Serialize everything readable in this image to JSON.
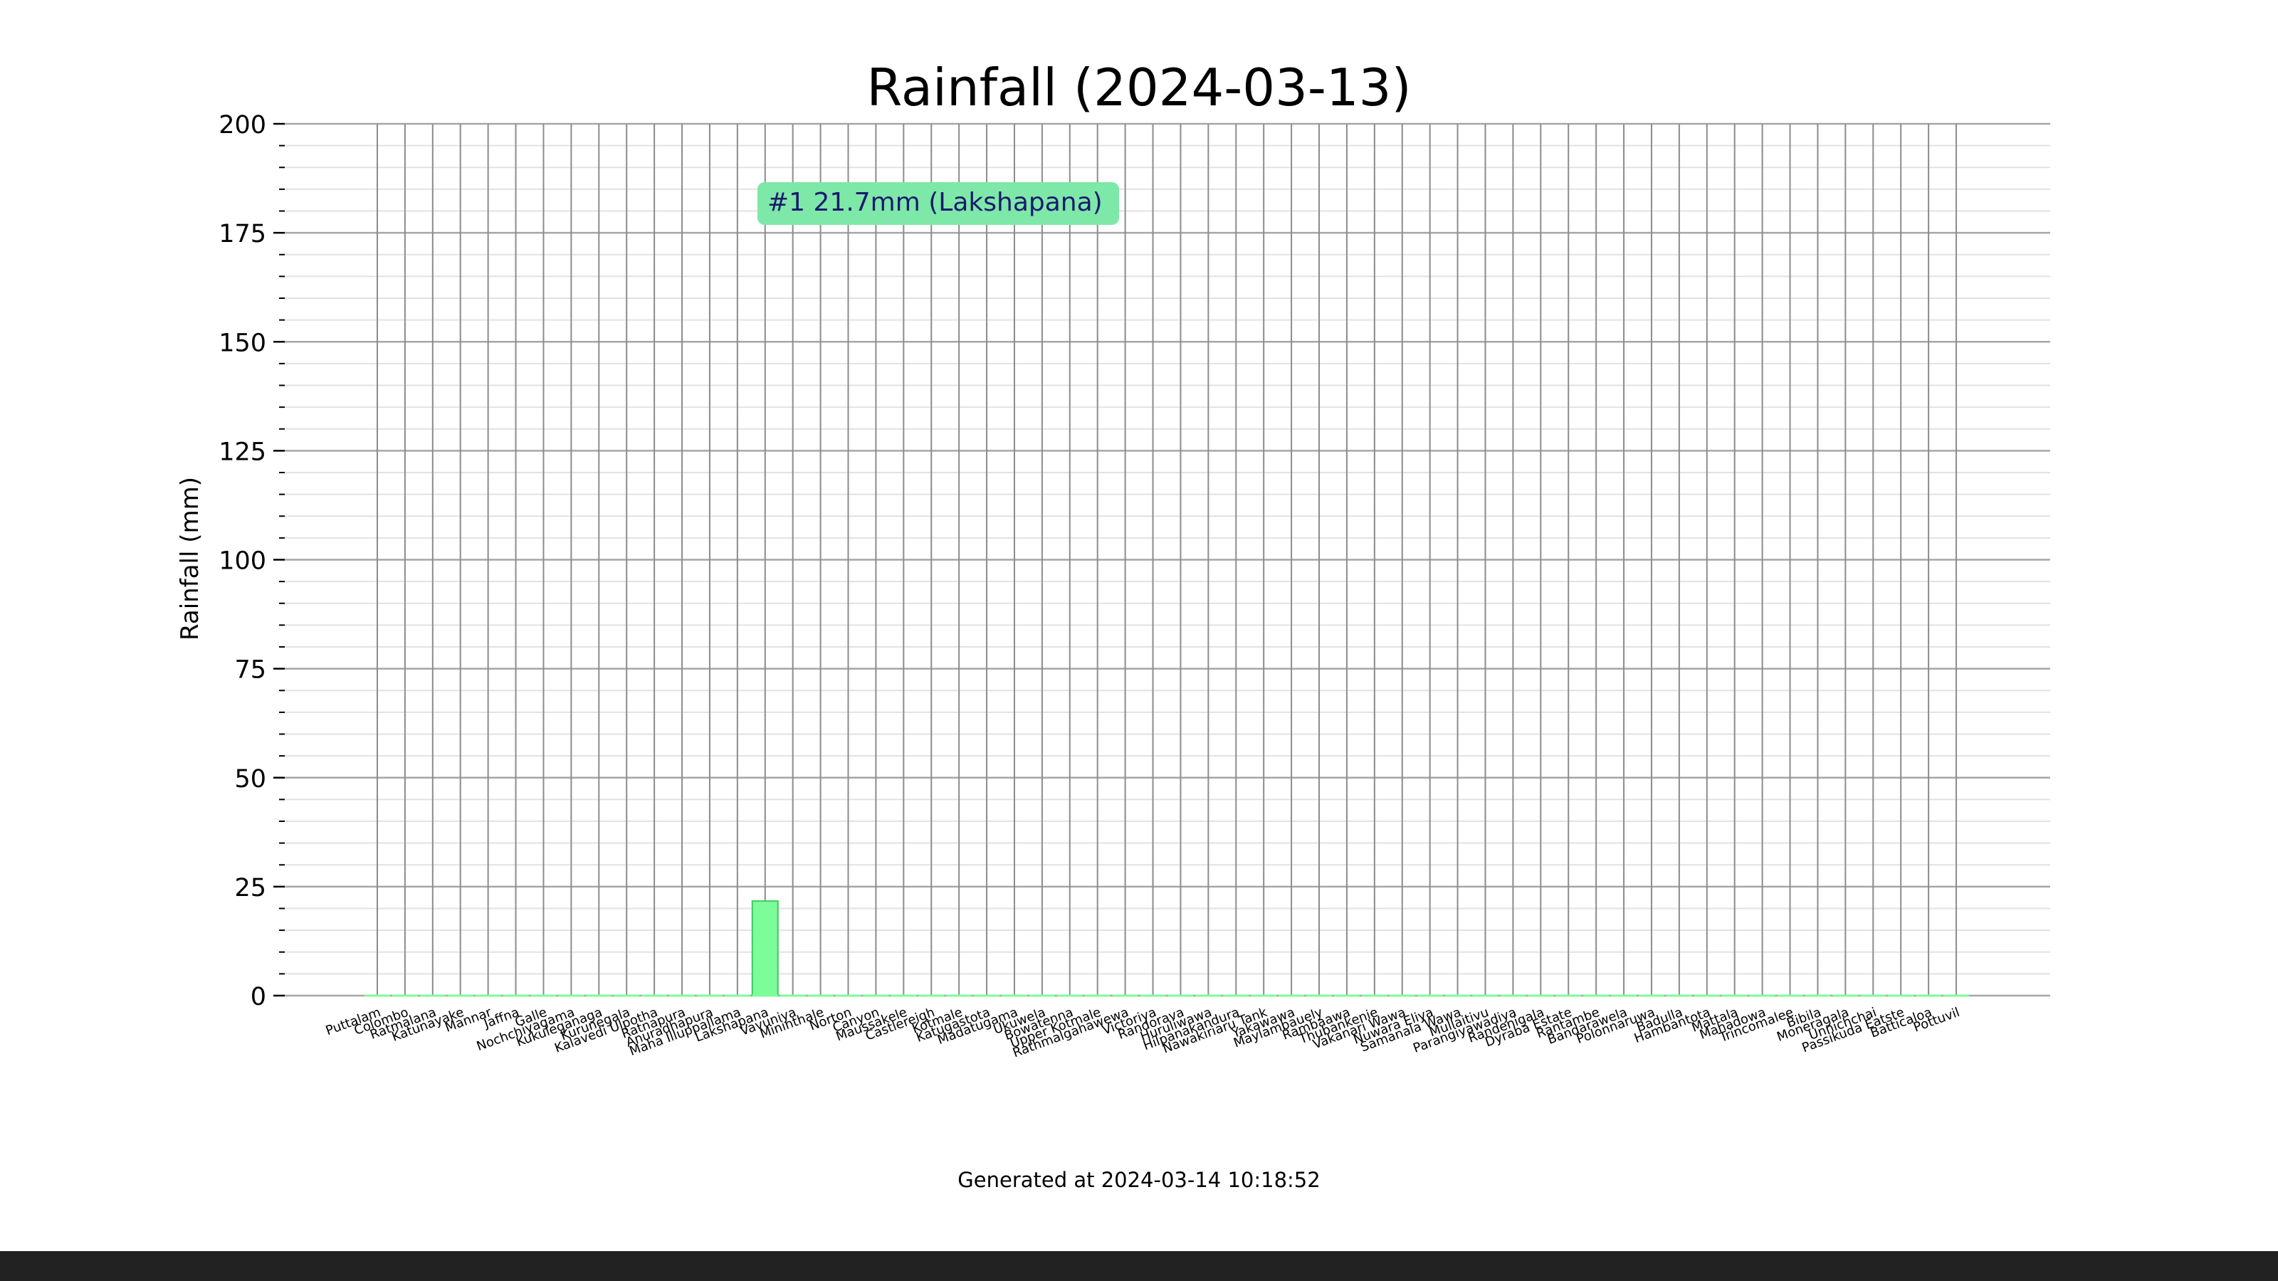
{
  "chart_data": {
    "type": "bar",
    "title": "Rainfall (2024-03-13)",
    "xlabel": "",
    "ylabel": "Rainfall (mm)",
    "ylim": [
      0,
      200
    ],
    "yticks": [
      0,
      25,
      50,
      75,
      100,
      125,
      150,
      175,
      200
    ],
    "grid": true,
    "categories": [
      "Puttalam",
      "Colombo",
      "Ratmalana",
      "Katunayake",
      "Mannar",
      "Jaffna",
      "Galle",
      "Nochchiyagama",
      "Kukuleganaga",
      "Kurunegala",
      "Kalavedi Ulpotha",
      "Ratnapura",
      "Anuradhapura",
      "Maha Illuppallama",
      "Lakshapana",
      "Vavuniya",
      "Mininthale",
      "Norton",
      "Canyon",
      "Maussakele",
      "Castlereigh",
      "Kotmale",
      "Katugastota",
      "Madatugama",
      "Ukuwela",
      "Bowatenna",
      "Upper Kotmale",
      "Rathmalgahawewa",
      "Victoriya",
      "Randorava",
      "Huruliwawa",
      "Hilpanakandura",
      "Nawakiriaru Tank",
      "Yakawawa",
      "Maylambauely",
      "Rambaawa",
      "Thubankenie",
      "Vakanari Wawa",
      "Nuwara Eliya",
      "Samanala Wawa",
      "Mullaitivu",
      "Parangiyawadiya",
      "Randenigala",
      "Dyraba Estate",
      "Rantambe",
      "Bandarawela",
      "Polonnaruwa",
      "Badulla",
      "Hambantota",
      "Mattala",
      "Mahadowa",
      "Trincomalee",
      "Bibila",
      "Moneragala",
      "Unnichchai",
      "Passikuda Eatste",
      "Batticaloa",
      "Pottuvil"
    ],
    "values": [
      0,
      0,
      0,
      0,
      0,
      0,
      0,
      0,
      0,
      0,
      0,
      0,
      0,
      0,
      21.7,
      0,
      0,
      0,
      0,
      0,
      0,
      0,
      0,
      0,
      0,
      0,
      0,
      0,
      0,
      0,
      0,
      0,
      0,
      0,
      0,
      0,
      0,
      0,
      0,
      0,
      0,
      0,
      0,
      0,
      0,
      0,
      0,
      0,
      0,
      0,
      0,
      0,
      0,
      0,
      0,
      0,
      0,
      0
    ],
    "annotation": {
      "text": "#1 21.7mm (Lakshapana)"
    },
    "bar_color": "#7dfc9a",
    "bar_edge_color": "#3ec95f",
    "annotation_bg": "#7de8a8",
    "annotation_text_color": "#1a1a6e",
    "footer": "Generated at 2024-03-14 10:18:52"
  }
}
